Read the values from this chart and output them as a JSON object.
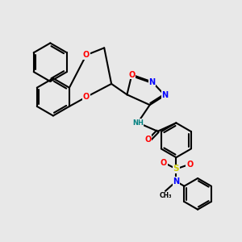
{
  "background_color": "#e8e8e8",
  "bond_color": "#000000",
  "atom_colors": {
    "O": "#ff0000",
    "N": "#0000ff",
    "S": "#cccc00",
    "C": "#000000",
    "H": "#008080"
  }
}
